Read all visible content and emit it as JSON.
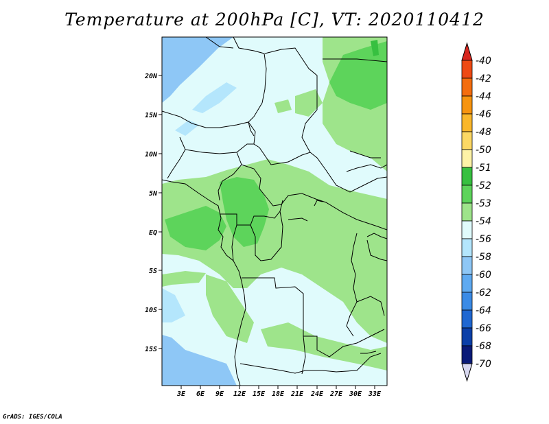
{
  "title": "Temperature at 200hPa [C], VT: 2020110412",
  "credit": "GrADS: IGES/COLA",
  "lat_labels": [
    "20N",
    "15N",
    "10N",
    "5N",
    "EQ",
    "5S",
    "10S",
    "15S"
  ],
  "lon_labels": [
    "3E",
    "6E",
    "9E",
    "12E",
    "15E",
    "18E",
    "21E",
    "24E",
    "27E",
    "30E",
    "33E"
  ],
  "colorbar": {
    "labels": [
      "-40",
      "-42",
      "-44",
      "-46",
      "-48",
      "-50",
      "-51",
      "-52",
      "-53",
      "-54",
      "-56",
      "-58",
      "-60",
      "-62",
      "-64",
      "-66",
      "-68",
      "-70"
    ],
    "colors": [
      "#d7261e",
      "#ee4a14",
      "#f46d0e",
      "#f7940f",
      "#fab72b",
      "#fcd864",
      "#fdf3a7",
      "#37c040",
      "#5dd45b",
      "#9ee48b",
      "#e0fbfc",
      "#b4e6fc",
      "#8ec7f6",
      "#5faaf1",
      "#3b8be6",
      "#1f67d1",
      "#0b3fa8",
      "#0a1a78",
      "#d8d8f0"
    ]
  },
  "colors": {
    "light_cyan": "#e0fbfc",
    "light_green": "#9ee48b",
    "medium_green": "#5dd45b",
    "light_blue": "#8ec7f6"
  }
}
